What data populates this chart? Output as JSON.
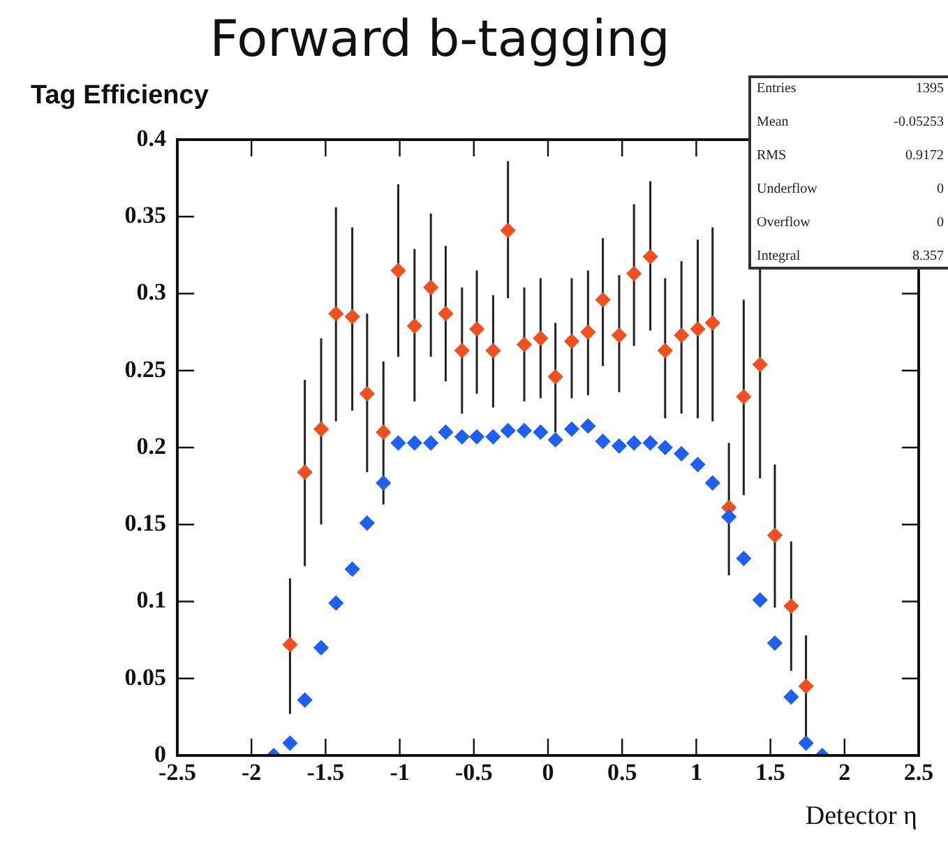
{
  "chart_data": {
    "type": "scatter",
    "title": "Forward b-tagging",
    "ylabel": "Tag Efficiency",
    "xlabel": "Detector η",
    "annotations": [
      "Entries",
      "1395",
      "Mean",
      "-0.05253",
      "RMS",
      "0.9172",
      "Underflow",
      "0",
      "Overflow",
      "0",
      "Integral",
      "8.357"
    ],
    "x": [
      -1.85,
      -1.74,
      -1.64,
      -1.53,
      -1.43,
      -1.32,
      -1.22,
      -1.11,
      -1.01,
      -0.9,
      -0.79,
      -0.69,
      -0.58,
      -0.48,
      -0.37,
      -0.27,
      -0.16,
      -0.05,
      0.05,
      0.16,
      0.27,
      0.37,
      0.48,
      0.58,
      0.69,
      0.79,
      0.9,
      1.01,
      1.11,
      1.22,
      1.32,
      1.43,
      1.53,
      1.64,
      1.74,
      1.85
    ],
    "series": [
      {
        "color": "#2060f0",
        "values": [
          0,
          0.008,
          0.036,
          0.07,
          0.099,
          0.121,
          0.151,
          0.177,
          0.203,
          0.203,
          0.203,
          0.21,
          0.207,
          0.207,
          0.207,
          0.211,
          0.211,
          0.21,
          0.205,
          0.212,
          0.214,
          0.204,
          0.201,
          0.203,
          0.203,
          0.2,
          0.196,
          0.189,
          0.177,
          0.155,
          0.128,
          0.101,
          0.073,
          0.038,
          0.008,
          0
        ]
      },
      {
        "color": "#f05020",
        "values": [
          null,
          0.072,
          0.184,
          0.212,
          0.287,
          0.285,
          0.235,
          0.21,
          0.315,
          0.279,
          0.304,
          0.287,
          0.263,
          0.277,
          0.263,
          0.341,
          0.267,
          0.271,
          0.246,
          0.269,
          0.275,
          0.296,
          0.273,
          0.313,
          0.324,
          0.263,
          0.273,
          0.277,
          0.281,
          0.161,
          0.233,
          0.254,
          0.143,
          0.097,
          0.045,
          null
        ],
        "errors": [
          null,
          [
            0.027,
            0.115
          ],
          [
            0.123,
            0.244
          ],
          [
            0.15,
            0.271
          ],
          [
            0.217,
            0.356
          ],
          [
            0.224,
            0.343
          ],
          [
            0.184,
            0.287
          ],
          [
            0.163,
            0.256
          ],
          [
            0.259,
            0.371
          ],
          [
            0.23,
            0.329
          ],
          [
            0.259,
            0.352
          ],
          [
            0.243,
            0.331
          ],
          [
            0.222,
            0.304
          ],
          [
            0.235,
            0.315
          ],
          [
            0.226,
            0.299
          ],
          [
            0.297,
            0.386
          ],
          [
            0.23,
            0.304
          ],
          [
            0.232,
            0.31
          ],
          [
            0.21,
            0.281
          ],
          [
            0.232,
            0.31
          ],
          [
            0.234,
            0.315
          ],
          [
            0.253,
            0.336
          ],
          [
            0.236,
            0.312
          ],
          [
            0.266,
            0.358
          ],
          [
            0.276,
            0.373
          ],
          [
            0.219,
            0.31
          ],
          [
            0.222,
            0.321
          ],
          [
            0.219,
            0.335
          ],
          [
            0.217,
            0.343
          ],
          [
            0.117,
            0.203
          ],
          [
            0.169,
            0.296
          ],
          [
            0.18,
            0.328
          ],
          [
            0.096,
            0.189
          ],
          [
            0.055,
            0.139
          ],
          [
            0.007,
            0.078
          ],
          null
        ]
      }
    ],
    "xlim": [
      -2.5,
      2.5
    ],
    "xticks": [
      -2.5,
      -2,
      -1.5,
      -1,
      -0.5,
      0,
      0.5,
      1,
      1.5,
      2,
      2.5
    ],
    "ylim": [
      0,
      0.4
    ],
    "yticks": [
      0,
      0.05,
      0.1,
      0.15,
      0.2,
      0.25,
      0.3,
      0.35,
      0.4
    ],
    "grid": false,
    "legend": false,
    "marker": "diamond"
  }
}
